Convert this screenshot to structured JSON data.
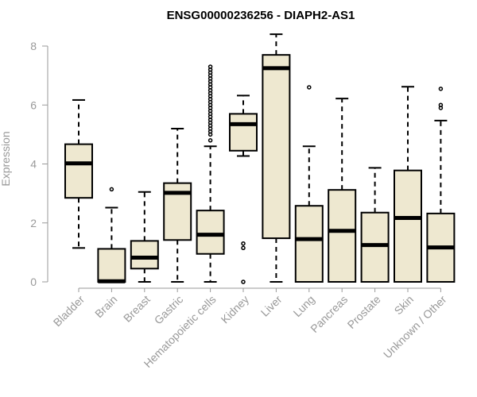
{
  "chart_data": {
    "type": "box",
    "title": "ENSG00000236256 - DIAPH2-AS1",
    "xlabel": "",
    "ylabel": "Expression",
    "ylim": [
      0,
      8.4
    ],
    "yticks": [
      0,
      2,
      4,
      6,
      8
    ],
    "box_fill": "#EEE8D0",
    "categories": [
      "Bladder",
      "Brain",
      "Breast",
      "Gastric",
      "Hematopoietic cells",
      "Kidney",
      "Liver",
      "Lung",
      "Pancreas",
      "Prostate",
      "Skin",
      "Unknown / Other"
    ],
    "boxes": [
      {
        "category": "Bladder",
        "min": 1.15,
        "q1": 2.85,
        "median": 4.02,
        "q3": 4.67,
        "max": 6.17,
        "outliers": []
      },
      {
        "category": "Brain",
        "min": 0.0,
        "q1": 0.0,
        "median": 0.02,
        "q3": 1.12,
        "max": 2.52,
        "outliers": [
          3.14
        ]
      },
      {
        "category": "Breast",
        "min": 0.0,
        "q1": 0.45,
        "median": 0.82,
        "q3": 1.39,
        "max": 3.05,
        "outliers": []
      },
      {
        "category": "Gastric",
        "min": 0.0,
        "q1": 1.42,
        "median": 3.02,
        "q3": 3.35,
        "max": 5.2,
        "outliers": []
      },
      {
        "category": "Hematopoietic cells",
        "min": 0.0,
        "q1": 0.95,
        "median": 1.6,
        "q3": 2.42,
        "max": 4.6,
        "outliers": [
          4.8,
          5.0,
          5.1,
          5.2,
          5.3,
          5.4,
          5.5,
          5.6,
          5.7,
          5.8,
          5.9,
          6.0,
          6.1,
          6.2,
          6.3,
          6.4,
          6.5,
          6.6,
          6.7,
          6.8,
          6.9,
          7.0,
          7.1,
          7.2,
          7.3
        ]
      },
      {
        "category": "Kidney",
        "min": 4.27,
        "q1": 4.45,
        "median": 5.35,
        "q3": 5.7,
        "max": 6.32,
        "outliers": [
          1.15,
          1.3,
          0.0
        ]
      },
      {
        "category": "Liver",
        "min": 0.0,
        "q1": 1.48,
        "median": 7.25,
        "q3": 7.7,
        "max": 8.4,
        "outliers": []
      },
      {
        "category": "Lung",
        "min": 0.0,
        "q1": 0.0,
        "median": 1.45,
        "q3": 2.58,
        "max": 4.6,
        "outliers": [
          6.6
        ]
      },
      {
        "category": "Pancreas",
        "min": 0.0,
        "q1": 0.0,
        "median": 1.73,
        "q3": 3.12,
        "max": 6.22,
        "outliers": []
      },
      {
        "category": "Prostate",
        "min": 0.0,
        "q1": 0.0,
        "median": 1.25,
        "q3": 2.35,
        "max": 3.87,
        "outliers": []
      },
      {
        "category": "Skin",
        "min": 0.0,
        "q1": 0.0,
        "median": 2.17,
        "q3": 3.78,
        "max": 6.62,
        "outliers": []
      },
      {
        "category": "Unknown / Other",
        "min": 0.0,
        "q1": 0.0,
        "median": 1.17,
        "q3": 2.32,
        "max": 5.47,
        "outliers": [
          5.9,
          6.0,
          6.55
        ]
      }
    ]
  }
}
